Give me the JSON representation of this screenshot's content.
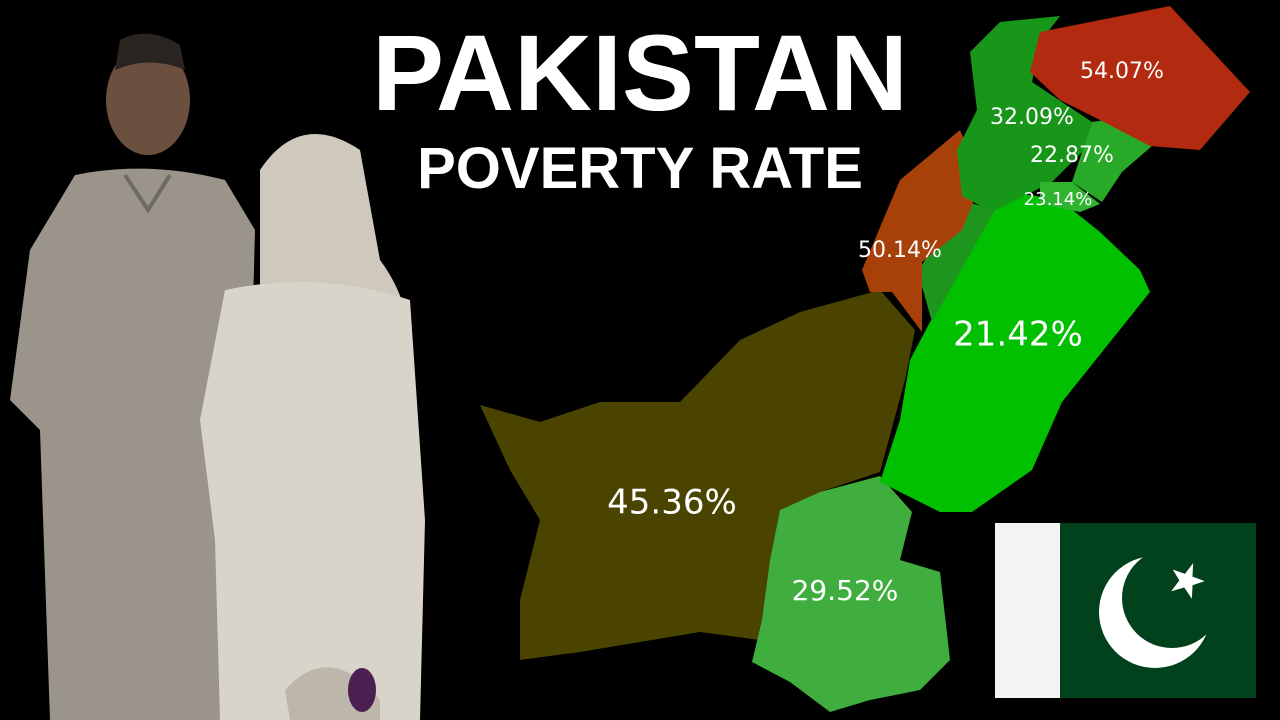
{
  "header": {
    "title": "PAKISTAN",
    "subtitle": "POVERTY RATE"
  },
  "map": {
    "labels": [
      "54.07%",
      "32.09%",
      "22.87%",
      "23.14%",
      "50.14%",
      "21.42%",
      "45.36%",
      "29.52%"
    ]
  }
}
